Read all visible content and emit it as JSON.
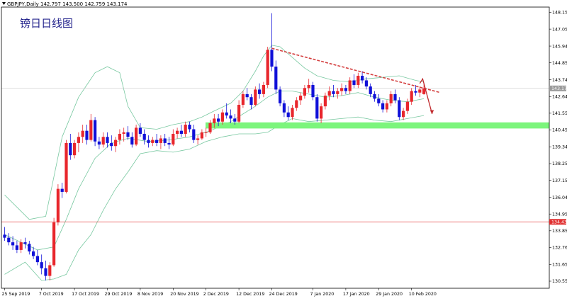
{
  "header": {
    "symbol_line": "GBPJPY,Daily  142.797 143.500 142.759 143.174"
  },
  "watermark": "镑日日线图",
  "colors": {
    "bull": "#e8262c",
    "bear": "#1010d8",
    "band": "#78c8a0",
    "trendline": "#d44040",
    "support": "#7cf57c",
    "hline_red": "#e85050",
    "price_box": "#9a9a9a",
    "level_box": "#e03030"
  },
  "chart_data": {
    "type": "candlestick",
    "title": "",
    "xlabel": "",
    "ylabel": "",
    "ylim": [
      130.1,
      148.6
    ],
    "yticks": [
      "148.150",
      "147.055",
      "145.945",
      "144.850",
      "143.740",
      "142.645",
      "141.550",
      "140.455",
      "139.345",
      "138.250",
      "137.155",
      "136.045",
      "134.950",
      "133.855",
      "132.760",
      "131.650",
      "130.555"
    ],
    "xticks": [
      "25 Sep 2019",
      "7 Oct 2019",
      "17 Oct 2019",
      "29 Oct 2019",
      "8 Nov 2019",
      "20 Nov 2019",
      "2 Dec 2019",
      "12 Dec 2019",
      "24 Dec 2019",
      "7 Jan 2020",
      "17 Jan 2020",
      "29 Jan 2020",
      "10 Feb 2020"
    ],
    "xtick_index": [
      0,
      9,
      17,
      25,
      33,
      41,
      49,
      57,
      65,
      75,
      83,
      91,
      99
    ],
    "current_price": "143.174",
    "horizontal_level": "134.438",
    "candles": [
      [
        133.6,
        134.1,
        133.2,
        133.4
      ],
      [
        133.4,
        133.7,
        132.9,
        133.1
      ],
      [
        133.1,
        133.5,
        132.6,
        132.9
      ],
      [
        132.9,
        133.2,
        132.4,
        132.6
      ],
      [
        132.6,
        133.3,
        132.4,
        133.1
      ],
      [
        133.1,
        133.4,
        132.7,
        133.0
      ],
      [
        133.0,
        133.2,
        132.3,
        132.5
      ],
      [
        132.5,
        132.8,
        132.0,
        132.2
      ],
      [
        132.2,
        132.6,
        131.6,
        131.8
      ],
      [
        131.8,
        132.3,
        131.0,
        131.4
      ],
      [
        131.4,
        131.9,
        130.6,
        130.9
      ],
      [
        130.9,
        131.8,
        130.6,
        131.6
      ],
      [
        131.6,
        134.7,
        131.5,
        134.4
      ],
      [
        134.4,
        136.9,
        134.2,
        136.6
      ],
      [
        136.6,
        137.0,
        136.0,
        136.4
      ],
      [
        136.4,
        139.8,
        136.3,
        139.6
      ],
      [
        139.6,
        140.2,
        138.5,
        138.8
      ],
      [
        138.8,
        139.8,
        138.6,
        139.6
      ],
      [
        139.6,
        140.3,
        139.0,
        140.0
      ],
      [
        140.0,
        140.8,
        139.6,
        140.4
      ],
      [
        140.4,
        140.8,
        139.5,
        139.8
      ],
      [
        139.8,
        141.5,
        139.7,
        141.1
      ],
      [
        141.1,
        141.3,
        139.4,
        139.7
      ],
      [
        139.7,
        140.0,
        139.2,
        139.5
      ],
      [
        139.5,
        140.3,
        139.3,
        140.0
      ],
      [
        140.0,
        140.3,
        139.3,
        139.6
      ],
      [
        139.6,
        140.1,
        139.1,
        139.4
      ],
      [
        139.4,
        140.0,
        139.0,
        139.8
      ],
      [
        139.8,
        140.5,
        139.5,
        140.2
      ],
      [
        140.2,
        140.6,
        139.7,
        140.3
      ],
      [
        140.3,
        140.7,
        139.8,
        140.0
      ],
      [
        140.0,
        140.3,
        139.3,
        139.5
      ],
      [
        139.5,
        140.8,
        139.4,
        140.6
      ],
      [
        140.6,
        140.9,
        140.0,
        140.2
      ],
      [
        140.2,
        140.5,
        139.5,
        139.8
      ],
      [
        139.8,
        140.1,
        139.3,
        139.6
      ],
      [
        139.6,
        140.0,
        139.4,
        139.8
      ],
      [
        139.8,
        140.2,
        139.4,
        139.6
      ],
      [
        139.6,
        140.1,
        139.2,
        139.9
      ],
      [
        139.9,
        140.2,
        139.4,
        139.6
      ],
      [
        139.6,
        140.0,
        139.2,
        139.5
      ],
      [
        139.5,
        140.5,
        139.4,
        140.2
      ],
      [
        140.2,
        140.6,
        139.9,
        140.4
      ],
      [
        140.4,
        140.8,
        140.0,
        140.2
      ],
      [
        140.2,
        141.0,
        140.0,
        140.8
      ],
      [
        140.8,
        141.0,
        140.3,
        140.5
      ],
      [
        140.5,
        140.8,
        139.6,
        139.8
      ],
      [
        139.8,
        140.1,
        139.5,
        139.9
      ],
      [
        139.9,
        140.5,
        139.8,
        140.3
      ],
      [
        140.3,
        140.6,
        140.0,
        140.3
      ],
      [
        140.3,
        141.1,
        140.2,
        140.9
      ],
      [
        140.9,
        141.5,
        140.6,
        141.2
      ],
      [
        141.2,
        141.5,
        140.7,
        141.0
      ],
      [
        141.0,
        141.8,
        140.8,
        141.6
      ],
      [
        141.6,
        142.2,
        141.2,
        141.4
      ],
      [
        141.4,
        141.8,
        140.9,
        141.2
      ],
      [
        141.2,
        141.5,
        140.8,
        141.0
      ],
      [
        141.0,
        142.4,
        140.9,
        142.1
      ],
      [
        142.1,
        143.0,
        141.9,
        142.8
      ],
      [
        142.8,
        143.2,
        142.4,
        142.6
      ],
      [
        142.6,
        142.8,
        141.8,
        142.1
      ],
      [
        142.1,
        143.3,
        142.0,
        143.1
      ],
      [
        143.1,
        143.5,
        142.5,
        142.8
      ],
      [
        142.8,
        143.6,
        142.6,
        143.4
      ],
      [
        143.4,
        145.9,
        143.2,
        145.7
      ],
      [
        145.7,
        148.1,
        144.3,
        144.6
      ],
      [
        144.6,
        145.0,
        142.8,
        143.1
      ],
      [
        143.1,
        143.3,
        142.0,
        142.2
      ],
      [
        142.2,
        142.4,
        141.3,
        141.6
      ],
      [
        141.6,
        142.0,
        141.1,
        141.3
      ],
      [
        141.3,
        142.1,
        141.1,
        141.9
      ],
      [
        141.9,
        142.6,
        141.7,
        142.4
      ],
      [
        142.4,
        142.9,
        142.1,
        142.7
      ],
      [
        142.7,
        143.4,
        142.5,
        143.2
      ],
      [
        143.2,
        143.8,
        142.9,
        143.4
      ],
      [
        143.4,
        143.6,
        142.4,
        142.6
      ],
      [
        142.6,
        142.8,
        141.0,
        141.2
      ],
      [
        141.2,
        142.2,
        140.9,
        142.0
      ],
      [
        142.0,
        142.9,
        141.8,
        142.7
      ],
      [
        142.7,
        143.3,
        142.4,
        143.0
      ],
      [
        143.0,
        143.4,
        142.6,
        142.8
      ],
      [
        142.8,
        143.2,
        142.5,
        143.0
      ],
      [
        143.0,
        143.5,
        142.7,
        143.2
      ],
      [
        143.2,
        143.4,
        142.8,
        143.0
      ],
      [
        143.0,
        143.9,
        142.8,
        143.7
      ],
      [
        143.7,
        144.1,
        143.2,
        143.4
      ],
      [
        143.4,
        144.2,
        143.2,
        144.0
      ],
      [
        144.0,
        144.3,
        143.5,
        143.7
      ],
      [
        143.7,
        143.9,
        143.1,
        143.3
      ],
      [
        143.3,
        143.5,
        142.6,
        142.8
      ],
      [
        142.8,
        143.0,
        142.3,
        142.5
      ],
      [
        142.5,
        142.8,
        142.0,
        142.2
      ],
      [
        142.2,
        142.4,
        141.6,
        141.8
      ],
      [
        141.8,
        142.4,
        141.6,
        142.2
      ],
      [
        142.2,
        143.0,
        142.0,
        142.8
      ],
      [
        142.8,
        143.1,
        142.2,
        142.4
      ],
      [
        142.4,
        142.6,
        141.1,
        141.3
      ],
      [
        141.3,
        141.9,
        141.1,
        141.7
      ],
      [
        141.7,
        142.5,
        141.5,
        142.3
      ],
      [
        142.3,
        143.2,
        142.1,
        143.0
      ],
      [
        143.0,
        143.4,
        142.7,
        142.9
      ],
      [
        142.9,
        143.3,
        142.6,
        143.1
      ],
      [
        142.8,
        143.5,
        142.76,
        143.17
      ]
    ],
    "bollinger": {
      "upper": [
        [
          0,
          136.2
        ],
        [
          6,
          134.6
        ],
        [
          10,
          134.8
        ],
        [
          14,
          140.0
        ],
        [
          18,
          142.6
        ],
        [
          22,
          144.2
        ],
        [
          25,
          144.6
        ],
        [
          28,
          144.2
        ],
        [
          30,
          142.0
        ],
        [
          33,
          140.6
        ],
        [
          37,
          140.5
        ],
        [
          41,
          140.8
        ],
        [
          45,
          141.0
        ],
        [
          48,
          141.3
        ],
        [
          51,
          141.7
        ],
        [
          55,
          142.2
        ],
        [
          58,
          143.0
        ],
        [
          61,
          144.3
        ],
        [
          63,
          145.3
        ],
        [
          65,
          146.0
        ],
        [
          67,
          145.9
        ],
        [
          70,
          145.2
        ],
        [
          73,
          144.5
        ],
        [
          76,
          144.0
        ],
        [
          80,
          143.7
        ],
        [
          84,
          143.6
        ],
        [
          88,
          143.8
        ],
        [
          92,
          143.9
        ],
        [
          96,
          144.0
        ],
        [
          100,
          143.7
        ],
        [
          102,
          143.6
        ]
      ],
      "lower": [
        [
          0,
          131.0
        ],
        [
          5,
          131.8
        ],
        [
          9,
          130.6
        ],
        [
          12,
          130.7
        ],
        [
          15,
          131.0
        ],
        [
          18,
          132.6
        ],
        [
          21,
          133.6
        ],
        [
          24,
          135.2
        ],
        [
          27,
          136.6
        ],
        [
          30,
          137.7
        ],
        [
          33,
          138.9
        ],
        [
          37,
          139.1
        ],
        [
          41,
          139.0
        ],
        [
          45,
          139.2
        ],
        [
          49,
          139.7
        ],
        [
          53,
          140.0
        ],
        [
          57,
          140.2
        ],
        [
          61,
          140.2
        ],
        [
          64,
          140.3
        ],
        [
          67,
          140.8
        ],
        [
          70,
          141.2
        ],
        [
          74,
          141.0
        ],
        [
          78,
          141.1
        ],
        [
          82,
          141.2
        ],
        [
          86,
          141.3
        ],
        [
          90,
          141.1
        ],
        [
          94,
          141.0
        ],
        [
          98,
          141.2
        ],
        [
          102,
          141.4
        ]
      ],
      "middle": [
        [
          0,
          133.6
        ],
        [
          8,
          132.6
        ],
        [
          12,
          132.8
        ],
        [
          15,
          134.6
        ],
        [
          18,
          136.6
        ],
        [
          22,
          138.6
        ],
        [
          26,
          139.6
        ],
        [
          30,
          139.9
        ],
        [
          35,
          139.7
        ],
        [
          40,
          139.8
        ],
        [
          45,
          140.0
        ],
        [
          50,
          140.4
        ],
        [
          55,
          141.0
        ],
        [
          58,
          141.5
        ],
        [
          61,
          142.0
        ],
        [
          64,
          142.6
        ],
        [
          67,
          143.0
        ],
        [
          70,
          143.0
        ],
        [
          74,
          142.8
        ],
        [
          78,
          142.6
        ],
        [
          82,
          142.7
        ],
        [
          86,
          142.9
        ],
        [
          90,
          142.6
        ],
        [
          94,
          142.4
        ],
        [
          98,
          142.3
        ],
        [
          102,
          142.5
        ]
      ]
    },
    "trendline": [
      [
        65,
        145.8
      ],
      [
        106,
        142.9
      ]
    ],
    "support_zone": [
      140.55,
      140.95
    ],
    "arrow": {
      "from": [
        101,
        143.5
      ],
      "peak": [
        101.7,
        143.8
      ],
      "to": [
        104,
        141.5
      ]
    }
  }
}
